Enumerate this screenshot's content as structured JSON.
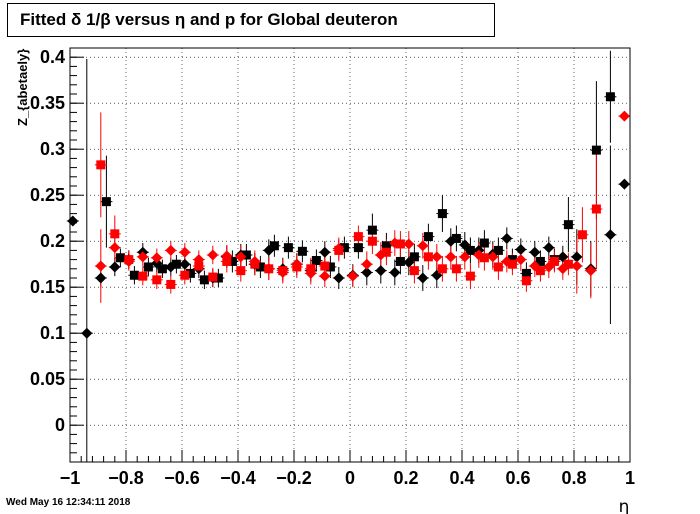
{
  "chart_data": {
    "type": "scatter",
    "title": "Fitted δ 1/β versus η and p for Global deuteron",
    "xlabel": "η",
    "ylabel": "Z_{abetaely}",
    "xlim": [
      -1,
      1
    ],
    "ylim": [
      -0.04,
      0.41
    ],
    "x_ticks": [
      -1,
      -0.8,
      -0.6,
      -0.4,
      -0.2,
      0,
      0.2,
      0.4,
      0.6,
      0.8,
      1
    ],
    "x_tick_labels": [
      "−1",
      "−0.8",
      "−0.6",
      "−0.4",
      "−0.2",
      "0",
      "0.2",
      "0.4",
      "0.6",
      "0.8",
      "1"
    ],
    "y_ticks": [
      0,
      0.05,
      0.1,
      0.15,
      0.2,
      0.25,
      0.3,
      0.35,
      0.4
    ],
    "y_tick_labels": [
      "0",
      "0.05",
      "0.1",
      "0.15",
      "0.2",
      "0.25",
      "0.3",
      "0.35",
      "0.4"
    ],
    "grid": true,
    "series": [
      {
        "color": "#000000",
        "marker": "diamond",
        "points": [
          {
            "x": -0.99,
            "y": 0.222,
            "err": 0.0
          },
          {
            "x": -0.94,
            "y": 0.1,
            "err": 0.298
          },
          {
            "x": -0.89,
            "y": 0.16,
            "err": 0.01
          },
          {
            "x": -0.84,
            "y": 0.172,
            "err": 0.01
          },
          {
            "x": -0.79,
            "y": 0.18,
            "err": 0.01
          },
          {
            "x": -0.74,
            "y": 0.188,
            "err": 0.01
          },
          {
            "x": -0.69,
            "y": 0.176,
            "err": 0.01
          },
          {
            "x": -0.64,
            "y": 0.172,
            "err": 0.01
          },
          {
            "x": -0.59,
            "y": 0.175,
            "err": 0.01
          },
          {
            "x": -0.54,
            "y": 0.17,
            "err": 0.01
          },
          {
            "x": -0.49,
            "y": 0.16,
            "err": 0.01
          },
          {
            "x": -0.44,
            "y": 0.183,
            "err": 0.012
          },
          {
            "x": -0.39,
            "y": 0.185,
            "err": 0.012
          },
          {
            "x": -0.34,
            "y": 0.175,
            "err": 0.012
          },
          {
            "x": -0.29,
            "y": 0.19,
            "err": 0.012
          },
          {
            "x": -0.24,
            "y": 0.17,
            "err": 0.012
          },
          {
            "x": -0.19,
            "y": 0.175,
            "err": 0.012
          },
          {
            "x": -0.14,
            "y": 0.168,
            "err": 0.012
          },
          {
            "x": -0.09,
            "y": 0.188,
            "err": 0.012
          },
          {
            "x": -0.04,
            "y": 0.16,
            "err": 0.012
          },
          {
            "x": 0.01,
            "y": 0.163,
            "err": 0.012
          },
          {
            "x": 0.06,
            "y": 0.166,
            "err": 0.014
          },
          {
            "x": 0.11,
            "y": 0.168,
            "err": 0.014
          },
          {
            "x": 0.16,
            "y": 0.166,
            "err": 0.014
          },
          {
            "x": 0.21,
            "y": 0.177,
            "err": 0.014
          },
          {
            "x": 0.26,
            "y": 0.16,
            "err": 0.014
          },
          {
            "x": 0.31,
            "y": 0.163,
            "err": 0.014
          },
          {
            "x": 0.36,
            "y": 0.2,
            "err": 0.014
          },
          {
            "x": 0.41,
            "y": 0.196,
            "err": 0.014
          },
          {
            "x": 0.46,
            "y": 0.19,
            "err": 0.014
          },
          {
            "x": 0.51,
            "y": 0.186,
            "err": 0.014
          },
          {
            "x": 0.56,
            "y": 0.203,
            "err": 0.012
          },
          {
            "x": 0.61,
            "y": 0.191,
            "err": 0.012
          },
          {
            "x": 0.66,
            "y": 0.188,
            "err": 0.012
          },
          {
            "x": 0.71,
            "y": 0.193,
            "err": 0.012
          },
          {
            "x": 0.76,
            "y": 0.183,
            "err": 0.012
          },
          {
            "x": 0.81,
            "y": 0.183,
            "err": 0.03
          },
          {
            "x": 0.86,
            "y": 0.17,
            "err": 0.03
          },
          {
            "x": 0.93,
            "y": 0.207,
            "err": 0.097
          },
          {
            "x": 0.98,
            "y": 0.262,
            "err": 0.0
          }
        ]
      },
      {
        "color": "#000000",
        "marker": "square",
        "points": [
          {
            "x": -0.87,
            "y": 0.243,
            "err": 0.05
          },
          {
            "x": -0.82,
            "y": 0.182,
            "err": 0.01
          },
          {
            "x": -0.77,
            "y": 0.163,
            "err": 0.01
          },
          {
            "x": -0.72,
            "y": 0.172,
            "err": 0.01
          },
          {
            "x": -0.67,
            "y": 0.17,
            "err": 0.01
          },
          {
            "x": -0.62,
            "y": 0.175,
            "err": 0.01
          },
          {
            "x": -0.57,
            "y": 0.165,
            "err": 0.01
          },
          {
            "x": -0.52,
            "y": 0.158,
            "err": 0.01
          },
          {
            "x": -0.47,
            "y": 0.16,
            "err": 0.01
          },
          {
            "x": -0.42,
            "y": 0.178,
            "err": 0.012
          },
          {
            "x": -0.37,
            "y": 0.185,
            "err": 0.012
          },
          {
            "x": -0.32,
            "y": 0.172,
            "err": 0.012
          },
          {
            "x": -0.27,
            "y": 0.195,
            "err": 0.012
          },
          {
            "x": -0.22,
            "y": 0.193,
            "err": 0.012
          },
          {
            "x": -0.17,
            "y": 0.189,
            "err": 0.012
          },
          {
            "x": -0.12,
            "y": 0.179,
            "err": 0.012
          },
          {
            "x": -0.07,
            "y": 0.172,
            "err": 0.012
          },
          {
            "x": -0.02,
            "y": 0.193,
            "err": 0.012
          },
          {
            "x": 0.03,
            "y": 0.193,
            "err": 0.012
          },
          {
            "x": 0.08,
            "y": 0.212,
            "err": 0.018
          },
          {
            "x": 0.13,
            "y": 0.195,
            "err": 0.014
          },
          {
            "x": 0.18,
            "y": 0.178,
            "err": 0.014
          },
          {
            "x": 0.23,
            "y": 0.183,
            "err": 0.014
          },
          {
            "x": 0.28,
            "y": 0.205,
            "err": 0.014
          },
          {
            "x": 0.33,
            "y": 0.23,
            "err": 0.02
          },
          {
            "x": 0.38,
            "y": 0.203,
            "err": 0.014
          },
          {
            "x": 0.43,
            "y": 0.19,
            "err": 0.014
          },
          {
            "x": 0.48,
            "y": 0.198,
            "err": 0.014
          },
          {
            "x": 0.53,
            "y": 0.19,
            "err": 0.014
          },
          {
            "x": 0.58,
            "y": 0.18,
            "err": 0.012
          },
          {
            "x": 0.63,
            "y": 0.165,
            "err": 0.012
          },
          {
            "x": 0.68,
            "y": 0.178,
            "err": 0.012
          },
          {
            "x": 0.73,
            "y": 0.18,
            "err": 0.012
          },
          {
            "x": 0.78,
            "y": 0.218,
            "err": 0.03
          },
          {
            "x": 0.88,
            "y": 0.299,
            "err": 0.075
          },
          {
            "x": 0.93,
            "y": 0.357,
            "err": 0.05
          }
        ]
      },
      {
        "color": "#ff0000",
        "marker": "diamond",
        "points": [
          {
            "x": -0.89,
            "y": 0.173,
            "err": 0.04
          },
          {
            "x": -0.84,
            "y": 0.193,
            "err": 0.015
          },
          {
            "x": -0.79,
            "y": 0.178,
            "err": 0.01
          },
          {
            "x": -0.74,
            "y": 0.183,
            "err": 0.01
          },
          {
            "x": -0.69,
            "y": 0.182,
            "err": 0.01
          },
          {
            "x": -0.64,
            "y": 0.19,
            "err": 0.01
          },
          {
            "x": -0.59,
            "y": 0.188,
            "err": 0.01
          },
          {
            "x": -0.54,
            "y": 0.18,
            "err": 0.01
          },
          {
            "x": -0.49,
            "y": 0.185,
            "err": 0.01
          },
          {
            "x": -0.44,
            "y": 0.184,
            "err": 0.012
          },
          {
            "x": -0.39,
            "y": 0.183,
            "err": 0.012
          },
          {
            "x": -0.34,
            "y": 0.178,
            "err": 0.012
          },
          {
            "x": -0.29,
            "y": 0.17,
            "err": 0.012
          },
          {
            "x": -0.24,
            "y": 0.166,
            "err": 0.012
          },
          {
            "x": -0.19,
            "y": 0.175,
            "err": 0.012
          },
          {
            "x": -0.14,
            "y": 0.165,
            "err": 0.012
          },
          {
            "x": -0.09,
            "y": 0.162,
            "err": 0.012
          },
          {
            "x": -0.04,
            "y": 0.192,
            "err": 0.012
          },
          {
            "x": 0.01,
            "y": 0.162,
            "err": 0.012
          },
          {
            "x": 0.06,
            "y": 0.175,
            "err": 0.014
          },
          {
            "x": 0.11,
            "y": 0.185,
            "err": 0.014
          },
          {
            "x": 0.16,
            "y": 0.198,
            "err": 0.014
          },
          {
            "x": 0.21,
            "y": 0.197,
            "err": 0.014
          },
          {
            "x": 0.26,
            "y": 0.195,
            "err": 0.014
          },
          {
            "x": 0.31,
            "y": 0.183,
            "err": 0.014
          },
          {
            "x": 0.36,
            "y": 0.183,
            "err": 0.014
          },
          {
            "x": 0.41,
            "y": 0.183,
            "err": 0.014
          },
          {
            "x": 0.46,
            "y": 0.185,
            "err": 0.014
          },
          {
            "x": 0.51,
            "y": 0.183,
            "err": 0.014
          },
          {
            "x": 0.56,
            "y": 0.178,
            "err": 0.012
          },
          {
            "x": 0.61,
            "y": 0.18,
            "err": 0.012
          },
          {
            "x": 0.66,
            "y": 0.173,
            "err": 0.012
          },
          {
            "x": 0.71,
            "y": 0.172,
            "err": 0.012
          },
          {
            "x": 0.76,
            "y": 0.17,
            "err": 0.012
          },
          {
            "x": 0.81,
            "y": 0.173,
            "err": 0.03
          },
          {
            "x": 0.86,
            "y": 0.168,
            "err": 0.03
          },
          {
            "x": 0.98,
            "y": 0.336,
            "err": 0.0
          }
        ]
      },
      {
        "color": "#ff0000",
        "marker": "square",
        "points": [
          {
            "x": -0.89,
            "y": 0.283,
            "err": 0.057
          },
          {
            "x": -0.84,
            "y": 0.208,
            "err": 0.02
          },
          {
            "x": -0.79,
            "y": 0.18,
            "err": 0.01
          },
          {
            "x": -0.74,
            "y": 0.162,
            "err": 0.01
          },
          {
            "x": -0.69,
            "y": 0.158,
            "err": 0.01
          },
          {
            "x": -0.64,
            "y": 0.153,
            "err": 0.01
          },
          {
            "x": -0.59,
            "y": 0.163,
            "err": 0.01
          },
          {
            "x": -0.54,
            "y": 0.173,
            "err": 0.01
          },
          {
            "x": -0.49,
            "y": 0.161,
            "err": 0.01
          },
          {
            "x": -0.44,
            "y": 0.178,
            "err": 0.012
          },
          {
            "x": -0.39,
            "y": 0.168,
            "err": 0.012
          },
          {
            "x": -0.34,
            "y": 0.175,
            "err": 0.012
          },
          {
            "x": -0.29,
            "y": 0.17,
            "err": 0.012
          },
          {
            "x": -0.24,
            "y": 0.168,
            "err": 0.012
          },
          {
            "x": -0.19,
            "y": 0.172,
            "err": 0.012
          },
          {
            "x": -0.14,
            "y": 0.17,
            "err": 0.012
          },
          {
            "x": -0.09,
            "y": 0.173,
            "err": 0.012
          },
          {
            "x": -0.04,
            "y": 0.19,
            "err": 0.012
          },
          {
            "x": 0.03,
            "y": 0.205,
            "err": 0.012
          },
          {
            "x": 0.08,
            "y": 0.2,
            "err": 0.014
          },
          {
            "x": 0.13,
            "y": 0.188,
            "err": 0.014
          },
          {
            "x": 0.18,
            "y": 0.197,
            "err": 0.014
          },
          {
            "x": 0.23,
            "y": 0.168,
            "err": 0.014
          },
          {
            "x": 0.28,
            "y": 0.183,
            "err": 0.014
          },
          {
            "x": 0.33,
            "y": 0.17,
            "err": 0.014
          },
          {
            "x": 0.38,
            "y": 0.17,
            "err": 0.014
          },
          {
            "x": 0.43,
            "y": 0.162,
            "err": 0.014
          },
          {
            "x": 0.48,
            "y": 0.182,
            "err": 0.014
          },
          {
            "x": 0.53,
            "y": 0.172,
            "err": 0.014
          },
          {
            "x": 0.58,
            "y": 0.175,
            "err": 0.012
          },
          {
            "x": 0.63,
            "y": 0.157,
            "err": 0.012
          },
          {
            "x": 0.68,
            "y": 0.168,
            "err": 0.012
          },
          {
            "x": 0.73,
            "y": 0.178,
            "err": 0.012
          },
          {
            "x": 0.78,
            "y": 0.175,
            "err": 0.012
          },
          {
            "x": 0.83,
            "y": 0.207,
            "err": 0.03
          },
          {
            "x": 0.88,
            "y": 0.235,
            "err": 0.065
          }
        ]
      }
    ]
  },
  "footer": {
    "timestamp": "Wed May 16 12:34:11 2018"
  }
}
